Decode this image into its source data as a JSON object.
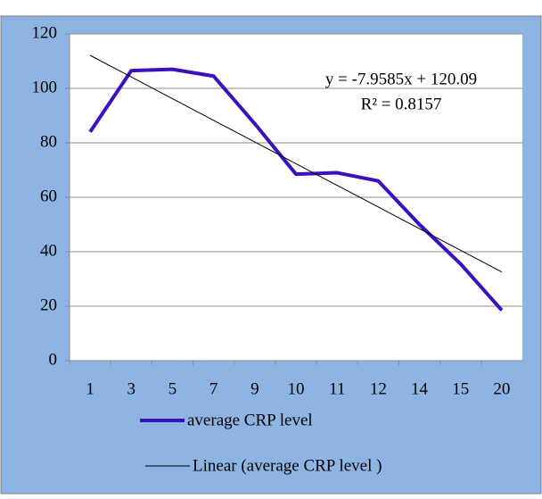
{
  "chart_data": {
    "type": "line",
    "categories": [
      "1",
      "3",
      "5",
      "7",
      "9",
      "10",
      "11",
      "12",
      "14",
      "15",
      "20"
    ],
    "series": [
      {
        "name": "average CRP level",
        "color": "#3d10bf",
        "values": [
          84,
          106.5,
          107,
          104.5,
          87,
          68.5,
          69,
          66,
          50,
          35.5,
          18.5
        ]
      }
    ],
    "trendline": {
      "name": "Linear (average CRP level )",
      "color": "#000000",
      "slope": -7.9585,
      "intercept": 120.09,
      "equation": "y = -7.9585x + 120.09",
      "r_squared": "R² = 0.8157"
    },
    "ylim": [
      0,
      120
    ],
    "yticks": [
      0,
      20,
      40,
      60,
      80,
      100,
      120
    ],
    "grid": true
  }
}
